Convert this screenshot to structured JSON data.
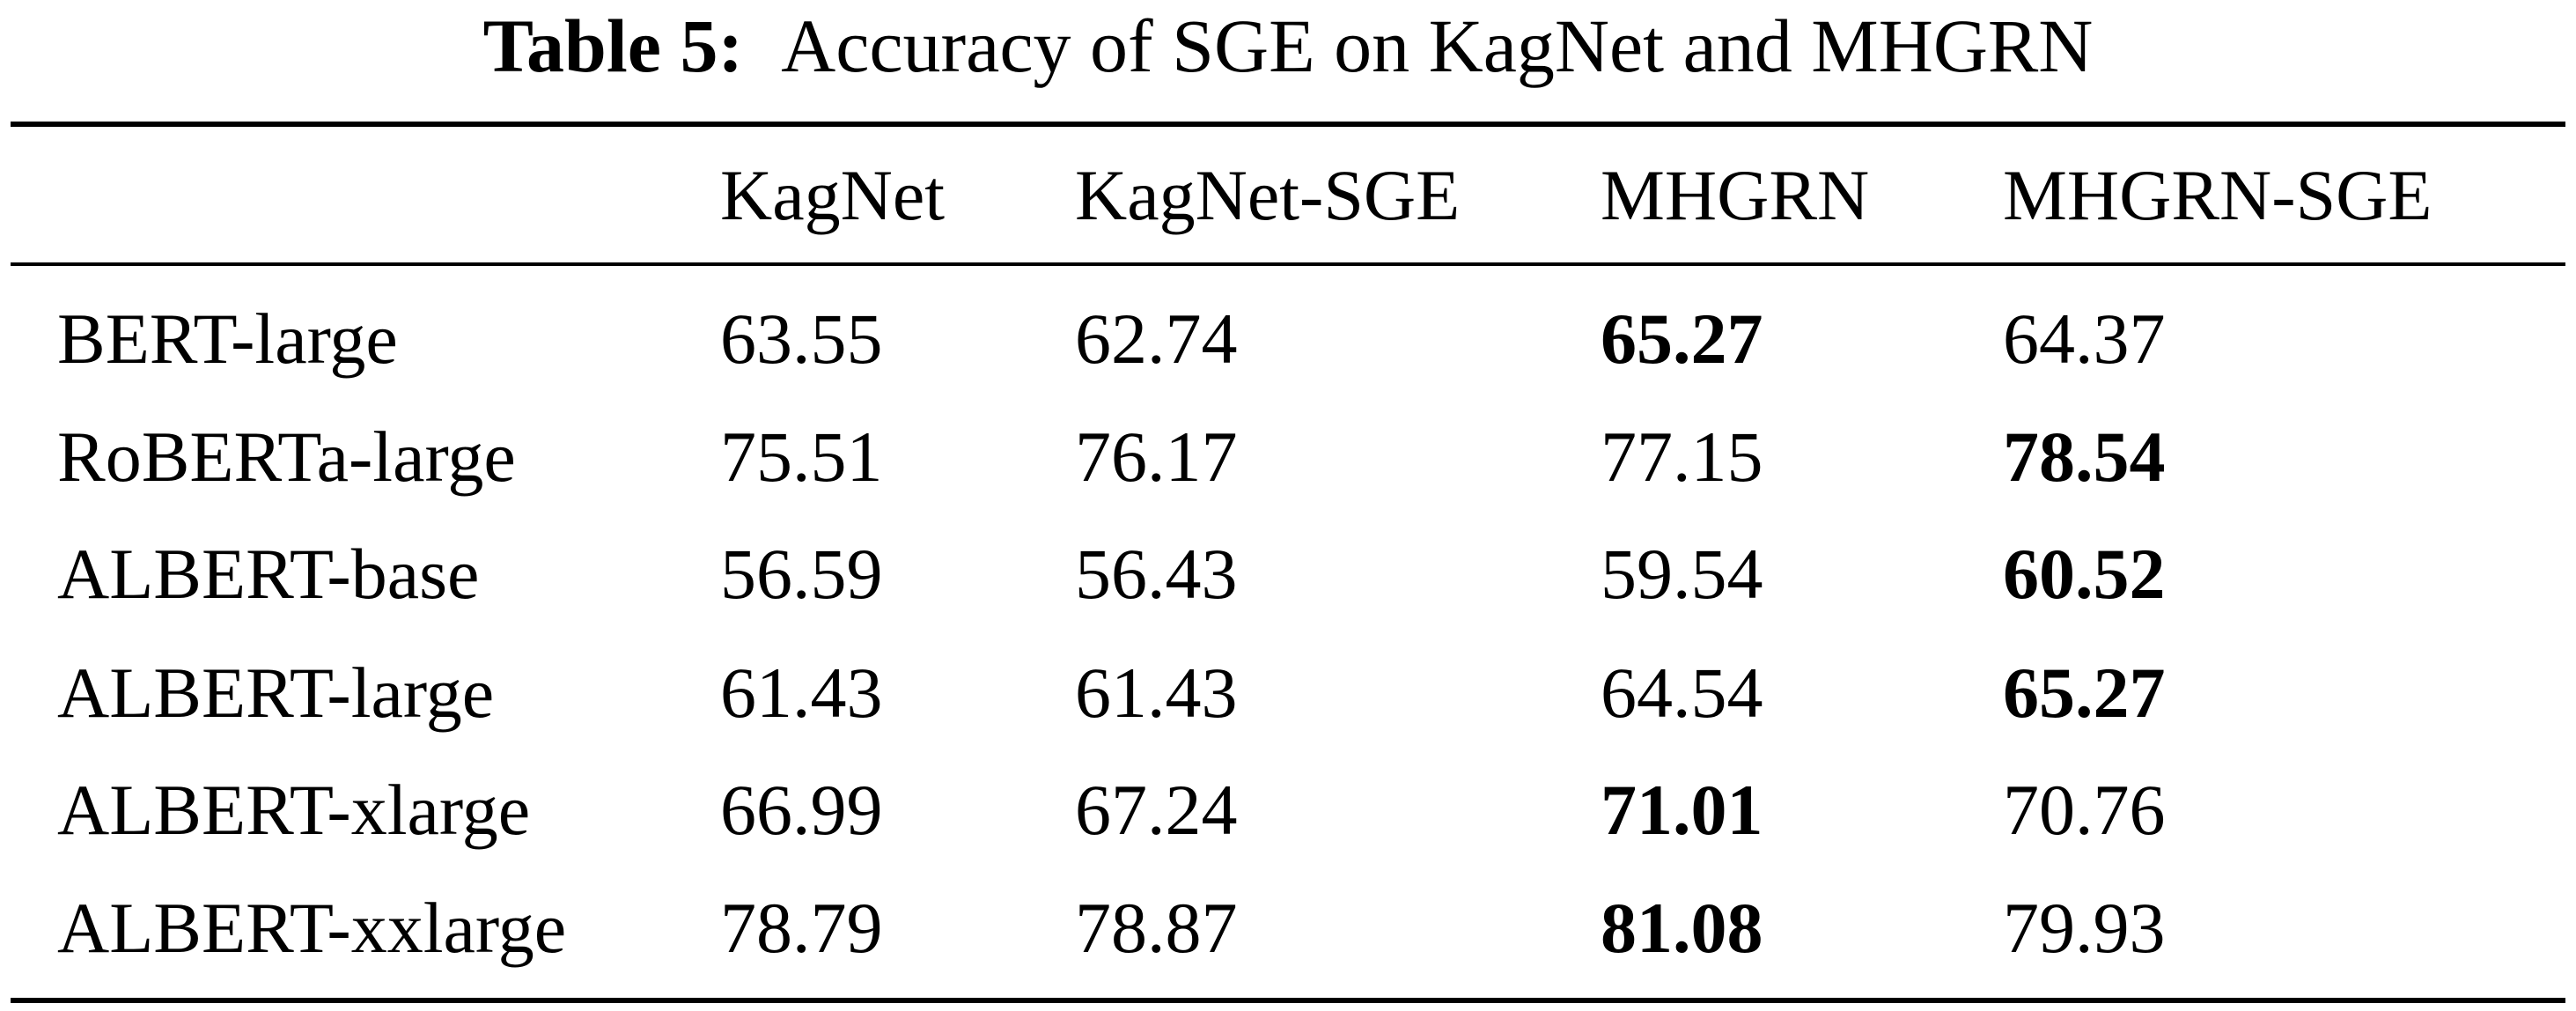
{
  "caption": {
    "label": "Table 5:",
    "text": "Accuracy of SGE on KagNet and MHGRN"
  },
  "table": {
    "columns": [
      "",
      "KagNet",
      "KagNet-SGE",
      "MHGRN",
      "MHGRN-SGE"
    ],
    "rows": [
      {
        "model": "BERT-large",
        "values": [
          "63.55",
          "62.74",
          "65.27",
          "64.37"
        ],
        "bold_index": 2
      },
      {
        "model": "RoBERTa-large",
        "values": [
          "75.51",
          "76.17",
          "77.15",
          "78.54"
        ],
        "bold_index": 3
      },
      {
        "model": "ALBERT-base",
        "values": [
          "56.59",
          "56.43",
          "59.54",
          "60.52"
        ],
        "bold_index": 3
      },
      {
        "model": "ALBERT-large",
        "values": [
          "61.43",
          "61.43",
          "64.54",
          "65.27"
        ],
        "bold_index": 3
      },
      {
        "model": "ALBERT-xlarge",
        "values": [
          "66.99",
          "67.24",
          "71.01",
          "70.76"
        ],
        "bold_index": 2
      },
      {
        "model": "ALBERT-xxlarge",
        "values": [
          "78.79",
          "78.87",
          "81.08",
          "79.93"
        ],
        "bold_index": 2
      }
    ]
  }
}
